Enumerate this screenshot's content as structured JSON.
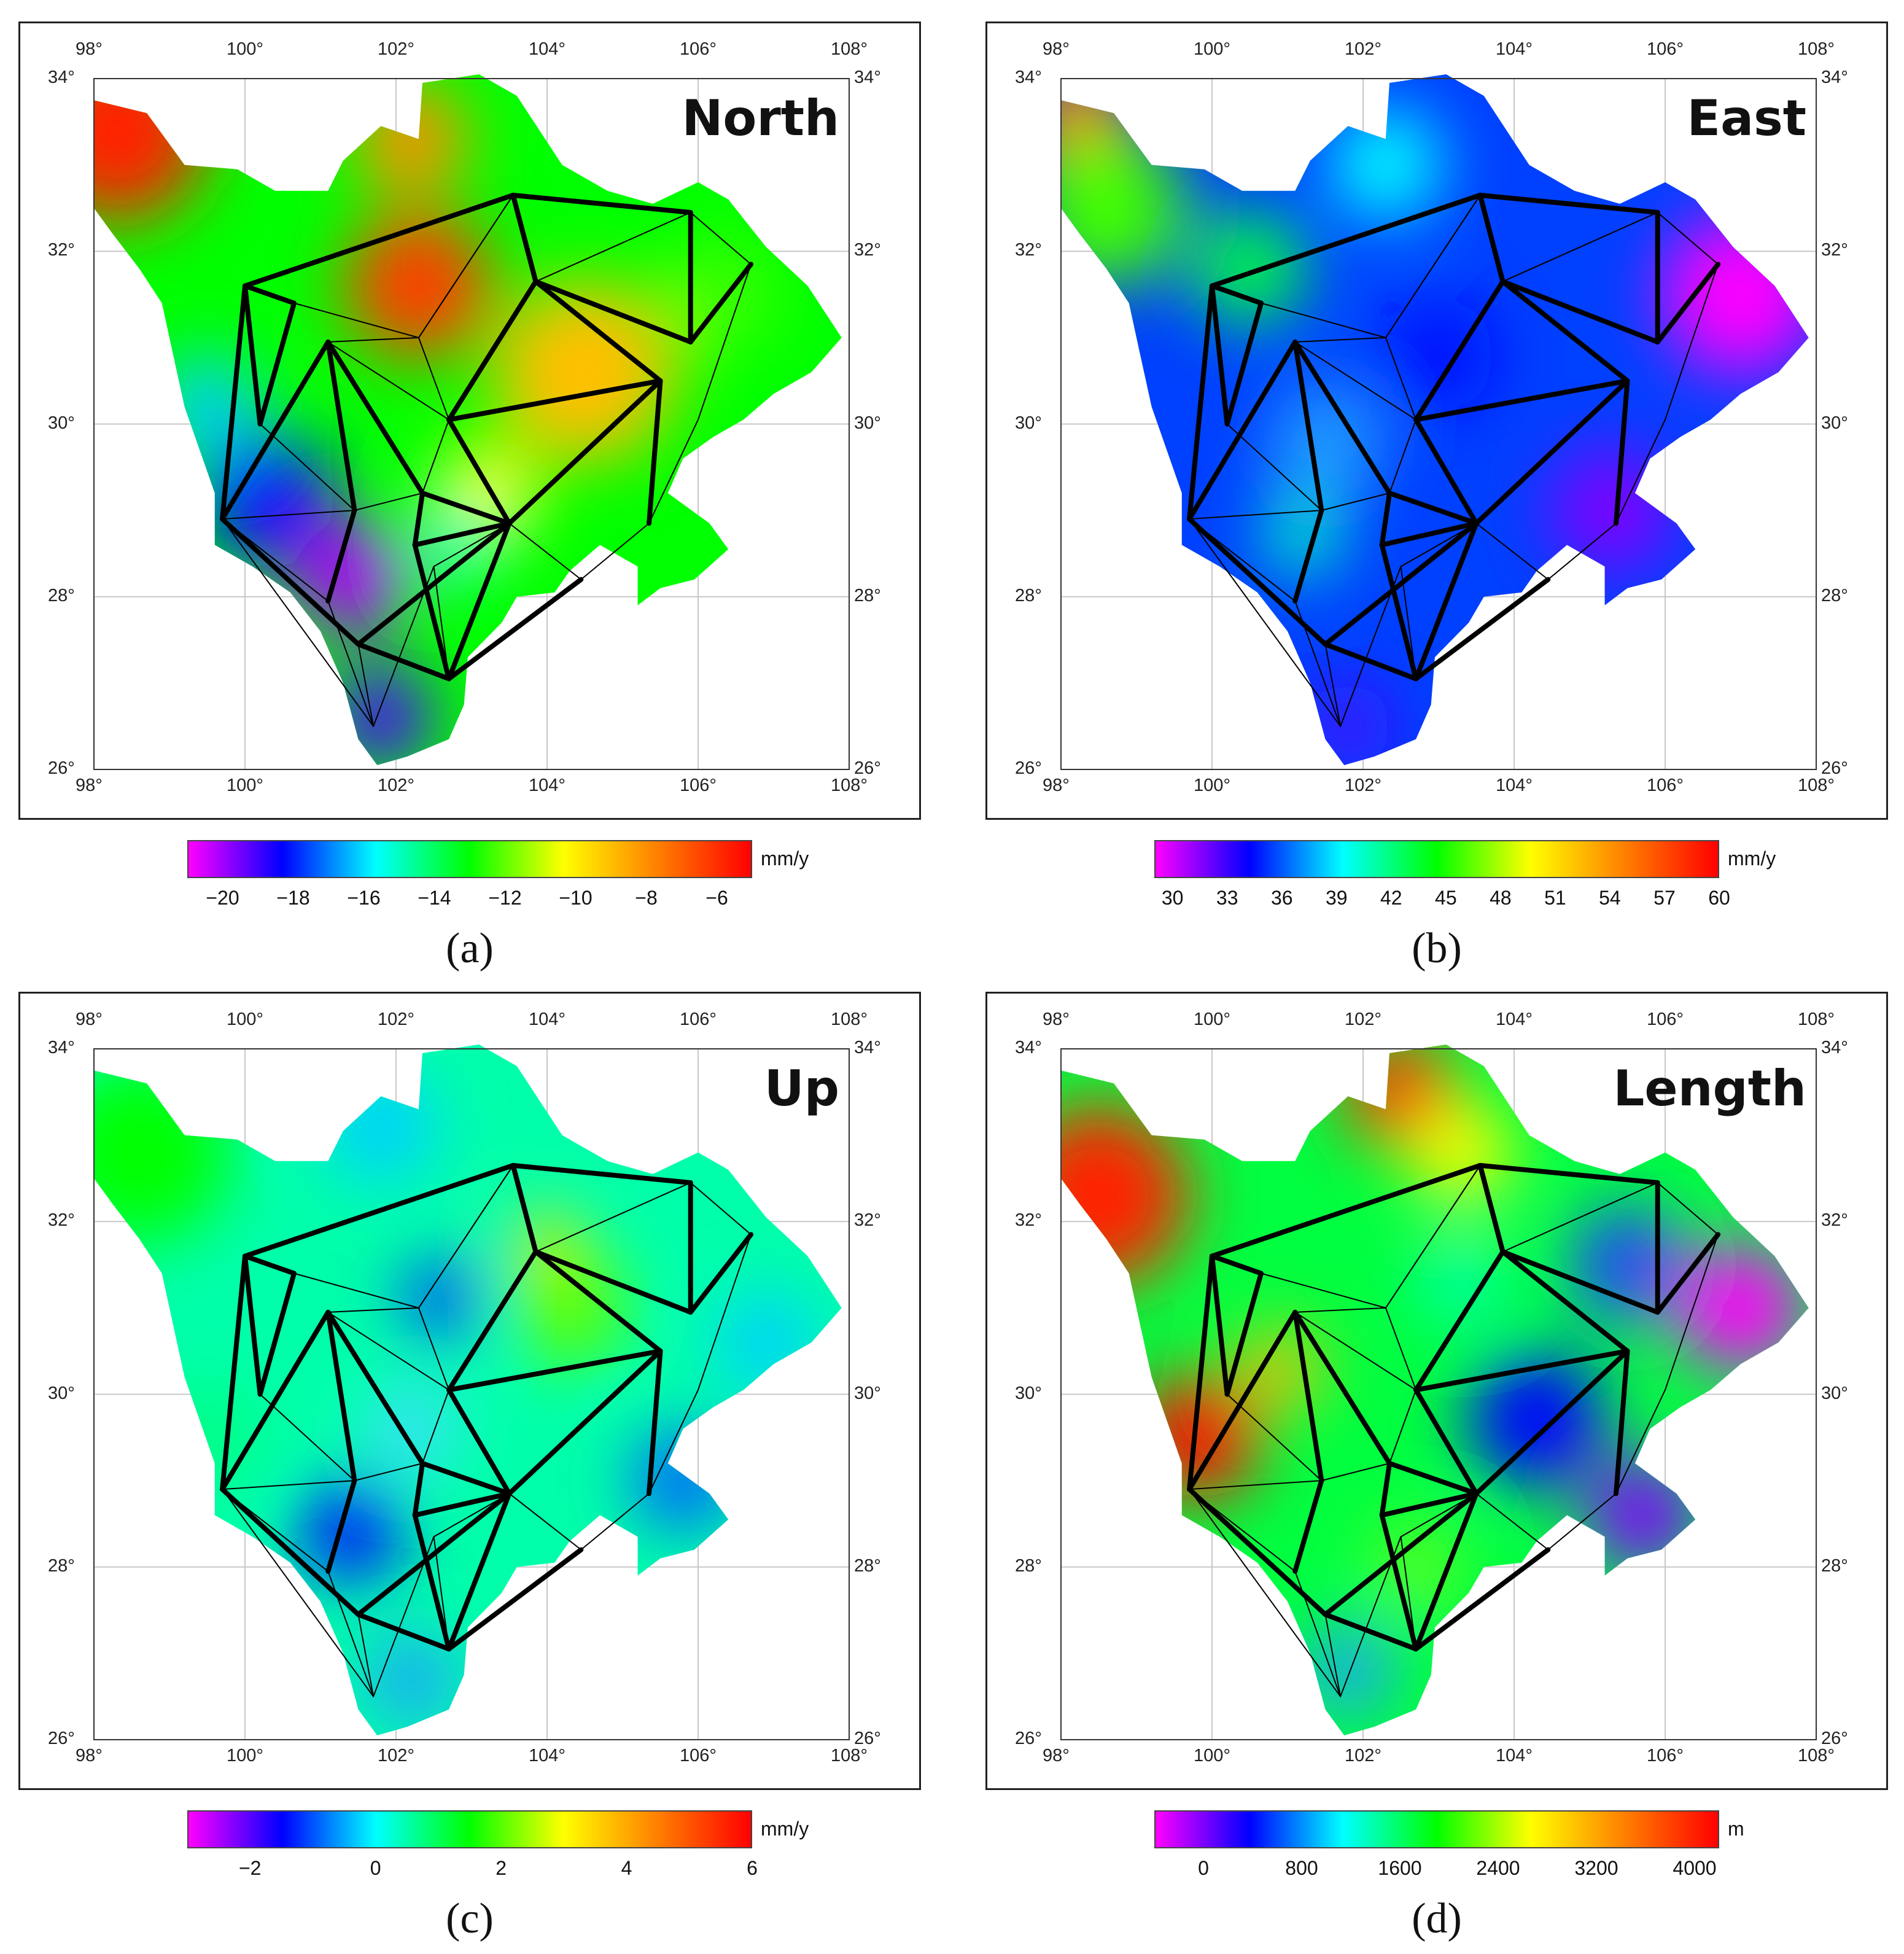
{
  "panels": [
    {
      "id": "a",
      "title": "North",
      "caption": "(a)",
      "unit": "mm/y",
      "colorbar_ticks": [
        "−20",
        "−18",
        "−16",
        "−14",
        "−12",
        "−10",
        "−8",
        "−6"
      ],
      "colorbar_min": -21,
      "colorbar_max": -5,
      "colorbar_tick_values": [
        -20,
        -18,
        -16,
        -14,
        -12,
        -10,
        -8,
        -6
      ]
    },
    {
      "id": "b",
      "title": "East",
      "caption": "(b)",
      "unit": "mm/y",
      "colorbar_ticks": [
        "30",
        "33",
        "36",
        "39",
        "42",
        "45",
        "48",
        "51",
        "54",
        "57",
        "60"
      ],
      "colorbar_min": 29,
      "colorbar_max": 60,
      "colorbar_tick_values": [
        30,
        33,
        36,
        39,
        42,
        45,
        48,
        51,
        54,
        57,
        60
      ]
    },
    {
      "id": "c",
      "title": "Up",
      "caption": "(c)",
      "unit": "mm/y",
      "colorbar_ticks": [
        "−2",
        "0",
        "2",
        "4",
        "6"
      ],
      "colorbar_min": -3,
      "colorbar_max": 6,
      "colorbar_tick_values": [
        -2,
        0,
        2,
        4,
        6
      ]
    },
    {
      "id": "d",
      "title": "Length",
      "caption": "(d)",
      "unit": "m",
      "colorbar_ticks": [
        "0",
        "800",
        "1600",
        "2400",
        "3200",
        "4000"
      ],
      "colorbar_min": -400,
      "colorbar_max": 4200,
      "colorbar_tick_values": [
        0,
        800,
        1600,
        2400,
        3200,
        4000
      ]
    }
  ],
  "axes": {
    "lon_labels": [
      "98°",
      "100°",
      "102°",
      "104°",
      "106°",
      "108°"
    ],
    "lon_values": [
      98,
      100,
      102,
      104,
      106,
      108
    ],
    "lat_labels": [
      "34°",
      "32°",
      "30°",
      "28°",
      "26°"
    ],
    "lat_values": [
      34,
      32,
      30,
      28,
      26
    ],
    "lon_range": [
      98,
      108
    ],
    "lat_range": [
      26,
      34
    ]
  },
  "colors": {
    "scale": [
      "#ff00ff",
      "#0000ff",
      "#00ffff",
      "#00ff00",
      "#ffff00",
      "#ff8000",
      "#ff0000"
    ],
    "network_line": "#000000",
    "grid": "#c8c8c8"
  },
  "network": {
    "stations": [
      [
        103.55,
        32.65
      ],
      [
        105.9,
        32.45
      ],
      [
        106.7,
        31.85
      ],
      [
        100.0,
        31.6
      ],
      [
        100.65,
        31.4
      ],
      [
        103.85,
        31.65
      ],
      [
        102.3,
        31.0
      ],
      [
        101.1,
        30.95
      ],
      [
        105.9,
        30.95
      ],
      [
        105.5,
        30.5
      ],
      [
        100.2,
        30.0
      ],
      [
        102.7,
        30.05
      ],
      [
        99.7,
        28.9
      ],
      [
        101.45,
        29.0
      ],
      [
        102.35,
        29.2
      ],
      [
        103.5,
        28.85
      ],
      [
        105.35,
        28.85
      ],
      [
        102.25,
        28.6
      ],
      [
        102.5,
        28.35
      ],
      [
        101.1,
        27.95
      ],
      [
        104.45,
        28.2
      ],
      [
        101.5,
        27.45
      ],
      [
        102.7,
        27.05
      ],
      [
        101.7,
        26.5
      ],
      [
        106.0,
        30.05
      ]
    ],
    "thick_edges": [
      [
        3,
        0
      ],
      [
        0,
        1
      ],
      [
        1,
        8
      ],
      [
        0,
        5
      ],
      [
        5,
        8
      ],
      [
        5,
        9
      ],
      [
        9,
        11
      ],
      [
        11,
        5
      ],
      [
        5,
        0
      ],
      [
        3,
        4
      ],
      [
        3,
        10
      ],
      [
        4,
        10
      ],
      [
        3,
        12
      ],
      [
        7,
        12
      ],
      [
        7,
        14
      ],
      [
        14,
        15
      ],
      [
        11,
        15
      ],
      [
        7,
        13
      ],
      [
        13,
        19
      ],
      [
        12,
        21
      ],
      [
        21,
        22
      ],
      [
        22,
        15
      ],
      [
        15,
        9
      ],
      [
        9,
        16
      ],
      [
        8,
        2
      ],
      [
        15,
        17
      ],
      [
        17,
        22
      ],
      [
        22,
        20
      ],
      [
        14,
        17
      ],
      [
        21,
        15
      ]
    ],
    "thin_edges": [
      [
        4,
        6
      ],
      [
        6,
        0
      ],
      [
        6,
        11
      ],
      [
        7,
        6
      ],
      [
        7,
        11
      ],
      [
        10,
        13
      ],
      [
        12,
        13
      ],
      [
        13,
        14
      ],
      [
        14,
        11
      ],
      [
        12,
        19
      ],
      [
        19,
        23
      ],
      [
        23,
        18
      ],
      [
        18,
        15
      ],
      [
        16,
        24
      ],
      [
        24,
        2
      ],
      [
        1,
        2
      ],
      [
        15,
        20
      ],
      [
        16,
        20
      ],
      [
        12,
        23
      ],
      [
        21,
        23
      ],
      [
        0,
        6
      ],
      [
        5,
        1
      ],
      [
        22,
        18
      ]
    ]
  }
}
